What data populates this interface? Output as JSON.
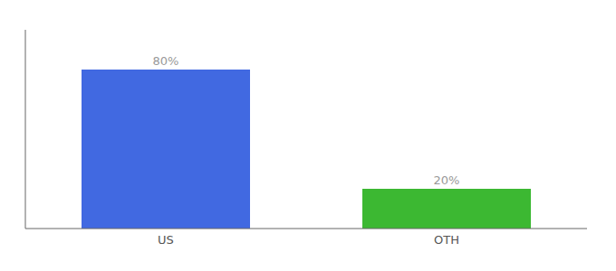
{
  "chart_data": {
    "type": "bar",
    "categories": [
      "US",
      "OTH"
    ],
    "values": [
      80,
      20
    ],
    "colors": [
      "#4169e1",
      "#3cb832"
    ],
    "value_labels": [
      "80%",
      "20%"
    ],
    "data_labels": true,
    "ylim": [
      0,
      100
    ],
    "grid": false,
    "tick_labels": "x"
  }
}
